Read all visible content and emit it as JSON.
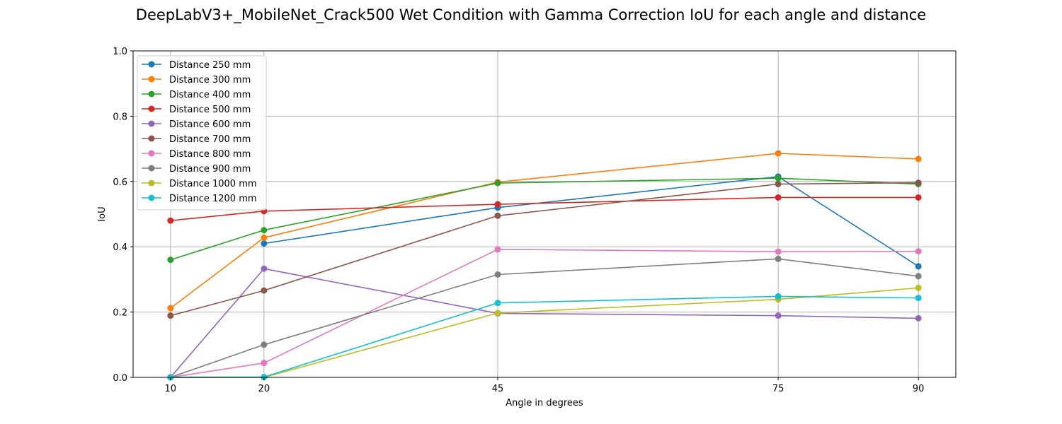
{
  "chart_data": {
    "type": "line",
    "title": "DeepLabV3+_MobileNet_Crack500 Wet Condition with Gamma Correction IoU for each angle and distance",
    "xlabel": "Angle in degrees",
    "ylabel": "IoU",
    "x": [
      10,
      20,
      45,
      75,
      90
    ],
    "x_tick_labels": [
      "10",
      "20",
      "45",
      "75",
      "90"
    ],
    "xlim": [
      6,
      94
    ],
    "ylim": [
      0.0,
      1.0
    ],
    "y_ticks": [
      0.0,
      0.2,
      0.4,
      0.6,
      0.8,
      1.0
    ],
    "y_tick_labels": [
      "0.0",
      "0.2",
      "0.4",
      "0.6",
      "0.8",
      "1.0"
    ],
    "grid": true,
    "legend_position": "upper-left",
    "series": [
      {
        "name": "Distance 250 mm",
        "color": "#1f77b4",
        "x": [
          20,
          45,
          75,
          90
        ],
        "values": [
          0.41,
          0.52,
          0.615,
          0.34
        ]
      },
      {
        "name": "Distance 300 mm",
        "color": "#ff7f0e",
        "x": [
          10,
          20,
          45,
          75,
          90
        ],
        "values": [
          0.212,
          0.428,
          0.598,
          0.686,
          0.669
        ]
      },
      {
        "name": "Distance 400 mm",
        "color": "#2ca02c",
        "x": [
          10,
          20,
          45,
          75,
          90
        ],
        "values": [
          0.36,
          0.451,
          0.595,
          0.61,
          0.592
        ]
      },
      {
        "name": "Distance 500 mm",
        "color": "#d62728",
        "x": [
          10,
          20,
          45,
          75,
          90
        ],
        "values": [
          0.48,
          0.509,
          0.53,
          0.551,
          0.551
        ]
      },
      {
        "name": "Distance 600 mm",
        "color": "#9467bd",
        "x": [
          10,
          20,
          45,
          75,
          90
        ],
        "values": [
          0.0,
          0.333,
          0.196,
          0.189,
          0.181
        ]
      },
      {
        "name": "Distance 700 mm",
        "color": "#8c564b",
        "x": [
          10,
          20,
          45,
          75,
          90
        ],
        "values": [
          0.189,
          0.266,
          0.495,
          0.592,
          0.596
        ]
      },
      {
        "name": "Distance 800 mm",
        "color": "#e377c2",
        "x": [
          10,
          20,
          45,
          75,
          90
        ],
        "values": [
          0.0,
          0.044,
          0.392,
          0.385,
          0.386
        ]
      },
      {
        "name": "Distance 900 mm",
        "color": "#7f7f7f",
        "x": [
          10,
          20,
          45,
          75,
          90
        ],
        "values": [
          0.0,
          0.1,
          0.315,
          0.363,
          0.31
        ]
      },
      {
        "name": "Distance 1000 mm",
        "color": "#bcbd22",
        "x": [
          10,
          20,
          45,
          75,
          90
        ],
        "values": [
          0.0,
          0.0,
          0.197,
          0.239,
          0.274
        ]
      },
      {
        "name": "Distance 1200 mm",
        "color": "#17becf",
        "x": [
          10,
          20,
          45,
          75,
          90
        ],
        "values": [
          0.0,
          0.001,
          0.228,
          0.248,
          0.243
        ]
      }
    ]
  }
}
